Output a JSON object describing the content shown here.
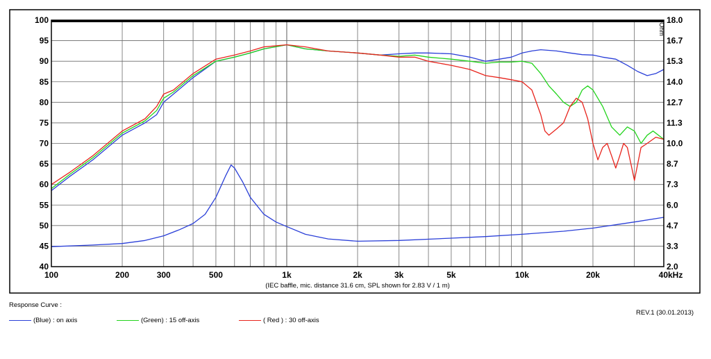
{
  "chart_data": {
    "type": "line",
    "caption": "(IEC baffle, mic. distance 31.6 cm, SPL shown for 2.83 V / 1 m)",
    "x_scale": "log",
    "xlim": [
      100,
      40000
    ],
    "ylim": [
      40,
      100
    ],
    "y2lim": [
      2.0,
      18.0
    ],
    "y2_unit": "Ohm",
    "grid": true,
    "x_ticks": [
      {
        "value": 100,
        "label": "100"
      },
      {
        "value": 200,
        "label": "200"
      },
      {
        "value": 300,
        "label": "300"
      },
      {
        "value": 500,
        "label": "500"
      },
      {
        "value": 1000,
        "label": "1k"
      },
      {
        "value": 2000,
        "label": "2k"
      },
      {
        "value": 3000,
        "label": "3k"
      },
      {
        "value": 5000,
        "label": "5k"
      },
      {
        "value": 10000,
        "label": "10k"
      },
      {
        "value": 20000,
        "label": "20k"
      },
      {
        "value": 40000,
        "label": "40kHz"
      }
    ],
    "y_ticks": [
      "100",
      "95",
      "90",
      "85",
      "80",
      "75",
      "70",
      "65",
      "60",
      "55",
      "50",
      "45",
      "40"
    ],
    "y2_ticks": [
      "18.0",
      "16.7",
      "15.3",
      "14.0",
      "12.7",
      "11.3",
      "10.0",
      "8.7",
      "7.3",
      "6.0",
      "4.7",
      "3.3",
      "2.0"
    ],
    "series": [
      {
        "name": "(Blue)  : on axis",
        "color": "#2a3fd8",
        "x": [
          100,
          120,
          150,
          200,
          250,
          280,
          300,
          330,
          400,
          500,
          600,
          700,
          800,
          1000,
          1200,
          1500,
          2000,
          2500,
          3000,
          3500,
          4000,
          5000,
          6000,
          7000,
          8000,
          9000,
          10000,
          11000,
          12000,
          14000,
          16000,
          18000,
          20000,
          22000,
          25000,
          28000,
          31000,
          34000,
          37000,
          40000
        ],
        "y": [
          58.5,
          62,
          66,
          72,
          75,
          77,
          80,
          82,
          86,
          90,
          91,
          92,
          93,
          94,
          93,
          92.5,
          92,
          91.5,
          91.8,
          92,
          92,
          91.8,
          91,
          90,
          90.5,
          91,
          92,
          92.5,
          92.8,
          92.5,
          92,
          91.6,
          91.5,
          91,
          90.5,
          89,
          87.5,
          86.5,
          87,
          88
        ]
      },
      {
        "name": "(Green) : 15 off-axis",
        "color": "#22d41c",
        "x": [
          100,
          120,
          150,
          200,
          250,
          280,
          300,
          330,
          400,
          500,
          600,
          700,
          800,
          1000,
          1200,
          1500,
          2000,
          2500,
          3000,
          3500,
          4000,
          5000,
          6000,
          7000,
          8000,
          9000,
          10000,
          11000,
          12000,
          13000,
          14000,
          15000,
          16000,
          17000,
          18000,
          19000,
          20000,
          22000,
          24000,
          26000,
          28000,
          30000,
          32000,
          34000,
          36000,
          40000
        ],
        "y": [
          59,
          62.5,
          66.5,
          72.5,
          75.5,
          78,
          81,
          82.5,
          86.5,
          90,
          91,
          92,
          93,
          94,
          93,
          92.5,
          92,
          91.5,
          91.2,
          91.5,
          91,
          90.5,
          90,
          89.5,
          89.8,
          89.8,
          90,
          89.5,
          87,
          84,
          82,
          80,
          79,
          80,
          83,
          84,
          83,
          79,
          74,
          72,
          74,
          73,
          70,
          72,
          73,
          71
        ]
      },
      {
        "name": "( Red )  : 30 off-axis",
        "color": "#e8241c",
        "x": [
          100,
          120,
          150,
          200,
          250,
          280,
          300,
          330,
          400,
          500,
          600,
          700,
          800,
          1000,
          1200,
          1500,
          2000,
          2500,
          3000,
          3500,
          4000,
          5000,
          6000,
          7000,
          8000,
          9000,
          10000,
          11000,
          12000,
          12500,
          13000,
          14000,
          15000,
          16000,
          17000,
          18000,
          19000,
          20000,
          21000,
          22000,
          23000,
          24000,
          25000,
          26000,
          27000,
          28000,
          29000,
          30000,
          32000,
          34000,
          37000,
          40000
        ],
        "y": [
          60,
          63,
          67,
          73,
          76,
          79,
          82,
          83,
          87,
          90.5,
          91.5,
          92.5,
          93.5,
          94,
          93.5,
          92.5,
          92,
          91.5,
          91,
          91,
          90,
          89,
          88,
          86.5,
          86,
          85.5,
          85,
          83,
          77,
          73,
          72,
          73.5,
          75,
          79,
          81,
          80,
          76,
          70,
          66,
          69,
          70,
          67,
          64,
          67,
          70,
          69,
          65,
          61,
          69,
          70,
          71.5,
          71
        ]
      },
      {
        "name": "impedance",
        "axis": "right",
        "color": "#2a3fd8",
        "x": [
          100,
          150,
          200,
          250,
          300,
          350,
          400,
          450,
          500,
          550,
          580,
          600,
          650,
          700,
          800,
          900,
          1000,
          1200,
          1500,
          2000,
          3000,
          5000,
          7000,
          10000,
          15000,
          20000,
          30000,
          40000
        ],
        "y": [
          3.3,
          3.4,
          3.5,
          3.7,
          4.0,
          4.4,
          4.8,
          5.4,
          6.5,
          7.9,
          8.6,
          8.4,
          7.5,
          6.5,
          5.4,
          4.9,
          4.6,
          4.1,
          3.8,
          3.65,
          3.7,
          3.85,
          3.95,
          4.1,
          4.3,
          4.5,
          4.9,
          5.2
        ]
      }
    ]
  },
  "footer": {
    "response_label": "Response Curve :",
    "revision": "REV.1 (30.01.2013)",
    "right_axis_unit": "Ohm"
  }
}
